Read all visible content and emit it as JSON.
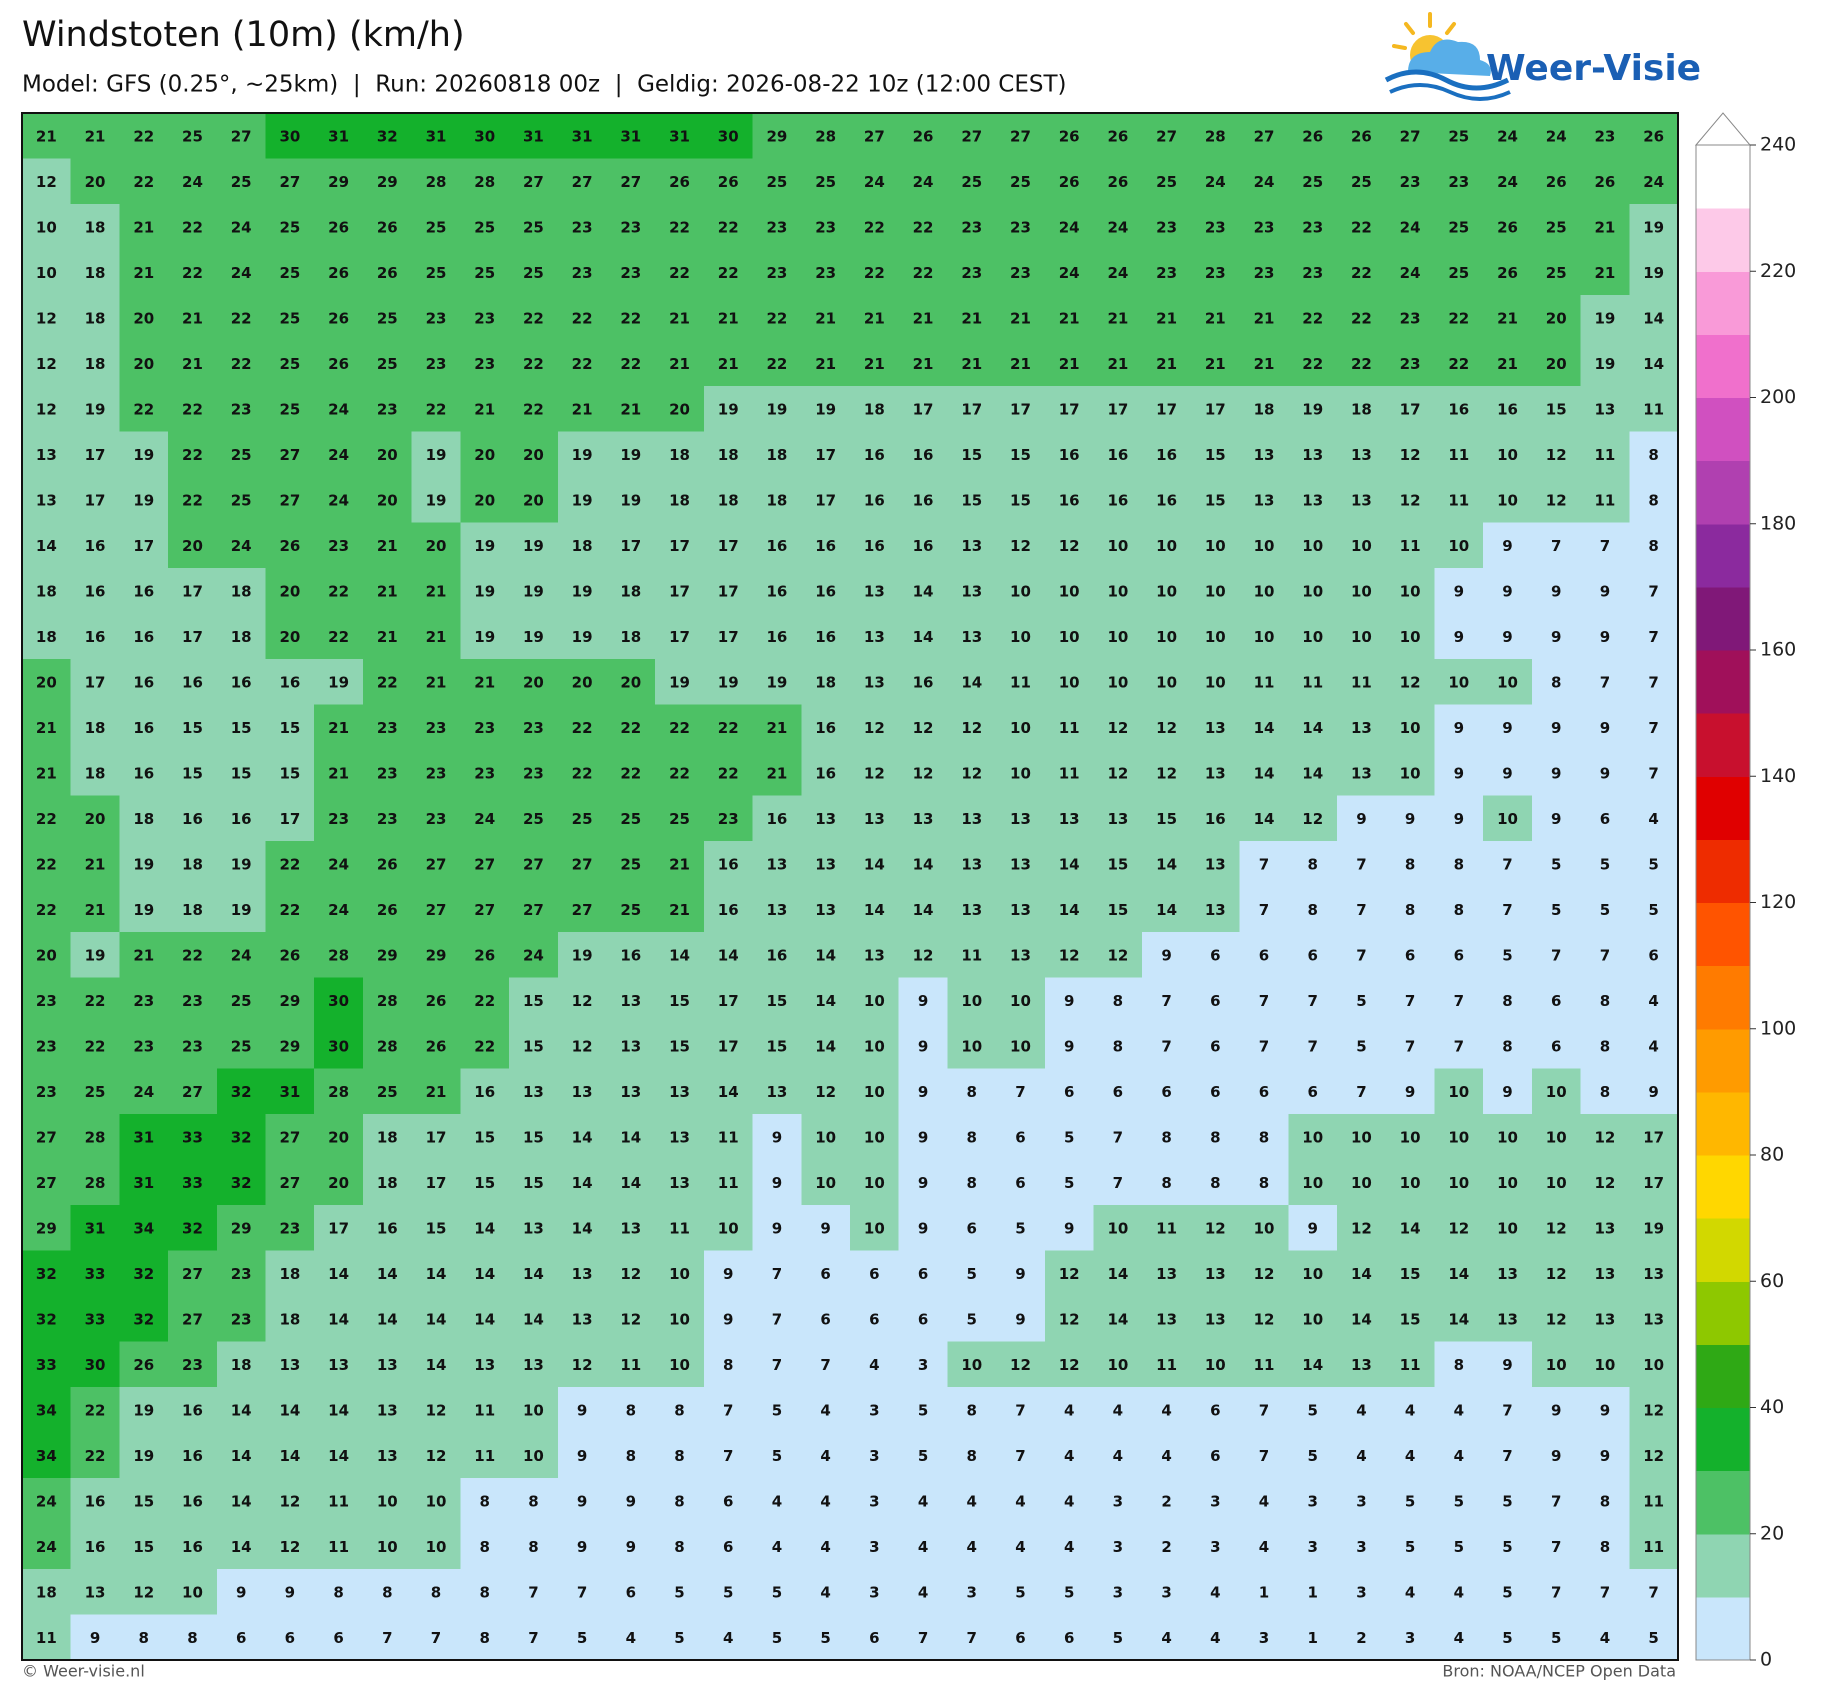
{
  "header": {
    "title": "Windstoten (10m) (km/h)",
    "subtitle": "Model: GFS (0.25°, ~25km)  |  Run: 20260818 00z  |  Geldig: 2026-08-22 10z (12:00 CEST)"
  },
  "logo": {
    "text": "Weer-Visie"
  },
  "map": {
    "rows": [
      [
        21,
        21,
        22,
        25,
        27,
        30,
        31,
        32,
        31,
        30,
        31,
        31,
        31,
        31,
        30,
        29,
        28,
        27,
        26,
        27,
        27,
        26,
        26,
        27,
        28,
        27,
        26,
        26,
        27,
        25,
        24,
        24,
        23,
        26
      ],
      [
        12,
        20,
        22,
        24,
        25,
        27,
        29,
        29,
        28,
        28,
        27,
        27,
        27,
        26,
        26,
        25,
        25,
        24,
        24,
        25,
        25,
        26,
        26,
        25,
        24,
        24,
        25,
        25,
        23,
        23,
        24,
        26,
        26,
        24
      ],
      [
        10,
        18,
        21,
        22,
        24,
        25,
        26,
        26,
        25,
        25,
        25,
        23,
        23,
        22,
        22,
        23,
        23,
        22,
        22,
        23,
        23,
        24,
        24,
        23,
        23,
        23,
        23,
        22,
        24,
        25,
        26,
        25,
        21,
        19
      ],
      [
        10,
        18,
        21,
        22,
        24,
        25,
        26,
        26,
        25,
        25,
        25,
        23,
        23,
        22,
        22,
        23,
        23,
        22,
        22,
        23,
        23,
        24,
        24,
        23,
        23,
        23,
        23,
        22,
        24,
        25,
        26,
        25,
        21,
        19
      ],
      [
        12,
        18,
        20,
        21,
        22,
        25,
        26,
        25,
        23,
        23,
        22,
        22,
        22,
        21,
        21,
        22,
        21,
        21,
        21,
        21,
        21,
        21,
        21,
        21,
        21,
        21,
        22,
        22,
        23,
        22,
        21,
        20,
        19,
        14
      ],
      [
        12,
        18,
        20,
        21,
        22,
        25,
        26,
        25,
        23,
        23,
        22,
        22,
        22,
        21,
        21,
        22,
        21,
        21,
        21,
        21,
        21,
        21,
        21,
        21,
        21,
        21,
        22,
        22,
        23,
        22,
        21,
        20,
        19,
        14
      ],
      [
        12,
        19,
        22,
        22,
        23,
        25,
        24,
        23,
        22,
        21,
        22,
        21,
        21,
        20,
        19,
        19,
        19,
        18,
        17,
        17,
        17,
        17,
        17,
        17,
        17,
        18,
        19,
        18,
        17,
        16,
        16,
        15,
        13,
        11
      ],
      [
        13,
        17,
        19,
        22,
        25,
        27,
        24,
        20,
        19,
        20,
        20,
        19,
        19,
        18,
        18,
        18,
        17,
        16,
        16,
        15,
        15,
        16,
        16,
        16,
        15,
        13,
        13,
        13,
        12,
        11,
        10,
        12,
        11,
        8
      ],
      [
        13,
        17,
        19,
        22,
        25,
        27,
        24,
        20,
        19,
        20,
        20,
        19,
        19,
        18,
        18,
        18,
        17,
        16,
        16,
        15,
        15,
        16,
        16,
        16,
        15,
        13,
        13,
        13,
        12,
        11,
        10,
        12,
        11,
        8
      ],
      [
        14,
        16,
        17,
        20,
        24,
        26,
        23,
        21,
        20,
        19,
        19,
        18,
        17,
        17,
        17,
        16,
        16,
        16,
        16,
        13,
        12,
        12,
        10,
        10,
        10,
        10,
        10,
        10,
        11,
        10,
        9,
        7,
        7,
        8
      ],
      [
        18,
        16,
        16,
        17,
        18,
        20,
        22,
        21,
        21,
        19,
        19,
        19,
        18,
        17,
        17,
        16,
        16,
        13,
        14,
        13,
        10,
        10,
        10,
        10,
        10,
        10,
        10,
        10,
        10,
        9,
        9,
        9,
        9,
        7
      ],
      [
        18,
        16,
        16,
        17,
        18,
        20,
        22,
        21,
        21,
        19,
        19,
        19,
        18,
        17,
        17,
        16,
        16,
        13,
        14,
        13,
        10,
        10,
        10,
        10,
        10,
        10,
        10,
        10,
        10,
        9,
        9,
        9,
        9,
        7
      ],
      [
        20,
        17,
        16,
        16,
        16,
        16,
        19,
        22,
        21,
        21,
        20,
        20,
        20,
        19,
        19,
        19,
        18,
        13,
        16,
        14,
        11,
        10,
        10,
        10,
        10,
        11,
        11,
        11,
        12,
        10,
        10,
        8,
        7,
        7
      ],
      [
        21,
        18,
        16,
        15,
        15,
        15,
        21,
        23,
        23,
        23,
        23,
        22,
        22,
        22,
        22,
        21,
        16,
        12,
        12,
        12,
        10,
        11,
        12,
        12,
        13,
        14,
        14,
        13,
        10,
        9,
        9,
        9,
        9,
        7
      ],
      [
        21,
        18,
        16,
        15,
        15,
        15,
        21,
        23,
        23,
        23,
        23,
        22,
        22,
        22,
        22,
        21,
        16,
        12,
        12,
        12,
        10,
        11,
        12,
        12,
        13,
        14,
        14,
        13,
        10,
        9,
        9,
        9,
        9,
        7
      ],
      [
        22,
        20,
        18,
        16,
        16,
        17,
        23,
        23,
        23,
        24,
        25,
        25,
        25,
        25,
        23,
        16,
        13,
        13,
        13,
        13,
        13,
        13,
        13,
        15,
        16,
        14,
        12,
        9,
        9,
        9,
        10,
        9,
        6,
        4
      ],
      [
        22,
        21,
        19,
        18,
        19,
        22,
        24,
        26,
        27,
        27,
        27,
        27,
        25,
        21,
        16,
        13,
        13,
        14,
        14,
        13,
        13,
        14,
        15,
        14,
        13,
        7,
        8,
        7,
        8,
        8,
        7,
        5,
        5,
        5
      ],
      [
        22,
        21,
        19,
        18,
        19,
        22,
        24,
        26,
        27,
        27,
        27,
        27,
        25,
        21,
        16,
        13,
        13,
        14,
        14,
        13,
        13,
        14,
        15,
        14,
        13,
        7,
        8,
        7,
        8,
        8,
        7,
        5,
        5,
        5
      ],
      [
        20,
        19,
        21,
        22,
        24,
        26,
        28,
        29,
        29,
        26,
        24,
        19,
        16,
        14,
        14,
        16,
        14,
        13,
        12,
        11,
        13,
        12,
        12,
        9,
        6,
        6,
        6,
        7,
        6,
        6,
        5,
        7,
        7,
        6
      ],
      [
        23,
        22,
        23,
        23,
        25,
        29,
        30,
        28,
        26,
        22,
        15,
        12,
        13,
        15,
        17,
        15,
        14,
        10,
        9,
        10,
        10,
        9,
        8,
        7,
        6,
        7,
        7,
        5,
        7,
        7,
        8,
        6,
        8,
        4
      ],
      [
        23,
        22,
        23,
        23,
        25,
        29,
        30,
        28,
        26,
        22,
        15,
        12,
        13,
        15,
        17,
        15,
        14,
        10,
        9,
        10,
        10,
        9,
        8,
        7,
        6,
        7,
        7,
        5,
        7,
        7,
        8,
        6,
        8,
        4
      ],
      [
        23,
        25,
        24,
        27,
        32,
        31,
        28,
        25,
        21,
        16,
        13,
        13,
        13,
        13,
        14,
        13,
        12,
        10,
        9,
        8,
        7,
        6,
        6,
        6,
        6,
        6,
        6,
        7,
        9,
        10,
        9,
        10,
        8,
        9
      ],
      [
        27,
        28,
        31,
        33,
        32,
        27,
        20,
        18,
        17,
        15,
        15,
        14,
        14,
        13,
        11,
        9,
        10,
        10,
        9,
        8,
        6,
        5,
        7,
        8,
        8,
        8,
        10,
        10,
        10,
        10,
        10,
        10,
        12,
        17
      ],
      [
        27,
        28,
        31,
        33,
        32,
        27,
        20,
        18,
        17,
        15,
        15,
        14,
        14,
        13,
        11,
        9,
        10,
        10,
        9,
        8,
        6,
        5,
        7,
        8,
        8,
        8,
        10,
        10,
        10,
        10,
        10,
        10,
        12,
        17
      ],
      [
        29,
        31,
        34,
        32,
        29,
        23,
        17,
        16,
        15,
        14,
        13,
        14,
        13,
        11,
        10,
        9,
        9,
        10,
        9,
        6,
        5,
        9,
        10,
        11,
        12,
        10,
        9,
        12,
        14,
        12,
        10,
        12,
        13,
        19
      ],
      [
        32,
        33,
        32,
        27,
        23,
        18,
        14,
        14,
        14,
        14,
        14,
        13,
        12,
        10,
        9,
        7,
        6,
        6,
        6,
        5,
        9,
        12,
        14,
        13,
        13,
        12,
        10,
        14,
        15,
        14,
        13,
        12,
        13,
        13
      ],
      [
        32,
        33,
        32,
        27,
        23,
        18,
        14,
        14,
        14,
        14,
        14,
        13,
        12,
        10,
        9,
        7,
        6,
        6,
        6,
        5,
        9,
        12,
        14,
        13,
        13,
        12,
        10,
        14,
        15,
        14,
        13,
        12,
        13,
        13
      ],
      [
        33,
        30,
        26,
        23,
        18,
        13,
        13,
        13,
        14,
        13,
        13,
        12,
        11,
        10,
        8,
        7,
        7,
        4,
        3,
        10,
        12,
        12,
        10,
        11,
        10,
        11,
        14,
        13,
        11,
        8,
        9,
        10,
        10,
        10
      ],
      [
        34,
        22,
        19,
        16,
        14,
        14,
        14,
        13,
        12,
        11,
        10,
        9,
        8,
        8,
        7,
        5,
        4,
        3,
        5,
        8,
        7,
        4,
        4,
        4,
        6,
        7,
        5,
        4,
        4,
        4,
        7,
        9,
        9,
        12
      ],
      [
        34,
        22,
        19,
        16,
        14,
        14,
        14,
        13,
        12,
        11,
        10,
        9,
        8,
        8,
        7,
        5,
        4,
        3,
        5,
        8,
        7,
        4,
        4,
        4,
        6,
        7,
        5,
        4,
        4,
        4,
        7,
        9,
        9,
        12
      ],
      [
        24,
        16,
        15,
        16,
        14,
        12,
        11,
        10,
        10,
        8,
        8,
        9,
        9,
        8,
        6,
        4,
        4,
        3,
        4,
        4,
        4,
        4,
        3,
        2,
        3,
        4,
        3,
        3,
        5,
        5,
        5,
        7,
        8,
        11
      ],
      [
        24,
        16,
        15,
        16,
        14,
        12,
        11,
        10,
        10,
        8,
        8,
        9,
        9,
        8,
        6,
        4,
        4,
        3,
        4,
        4,
        4,
        4,
        3,
        2,
        3,
        4,
        3,
        3,
        5,
        5,
        5,
        7,
        8,
        11
      ],
      [
        18,
        13,
        12,
        10,
        9,
        9,
        8,
        8,
        8,
        8,
        7,
        7,
        6,
        5,
        5,
        5,
        4,
        3,
        4,
        3,
        5,
        5,
        3,
        3,
        4,
        1,
        1,
        3,
        4,
        4,
        5,
        7,
        7,
        7
      ],
      [
        11,
        9,
        8,
        8,
        6,
        6,
        6,
        7,
        7,
        8,
        7,
        5,
        4,
        5,
        4,
        5,
        5,
        6,
        7,
        7,
        6,
        6,
        5,
        4,
        4,
        3,
        1,
        2,
        3,
        4,
        5,
        5,
        4,
        5
      ]
    ],
    "colorbar": {
      "ticks": [
        0,
        20,
        40,
        60,
        80,
        100,
        120,
        140,
        160,
        180,
        200,
        220,
        240
      ],
      "colors": [
        "#c9e6fb",
        "#8fd5b2",
        "#4dc165",
        "#14b12c",
        "#2fa915",
        "#8ec800",
        "#d2d800",
        "#ffd700",
        "#ffb700",
        "#ff9b00",
        "#ff7b00",
        "#ff5400",
        "#ee2c00",
        "#e00000",
        "#c8102e",
        "#a0105a",
        "#801878",
        "#8b2a9e",
        "#b040b0",
        "#d050c0",
        "#f070cc",
        "#f99ad8",
        "#fdc9e8",
        "#ffffff"
      ]
    }
  },
  "footer": {
    "credit": "© Weer-visie.nl",
    "source": "Bron: NOAA/NCEP Open Data"
  }
}
